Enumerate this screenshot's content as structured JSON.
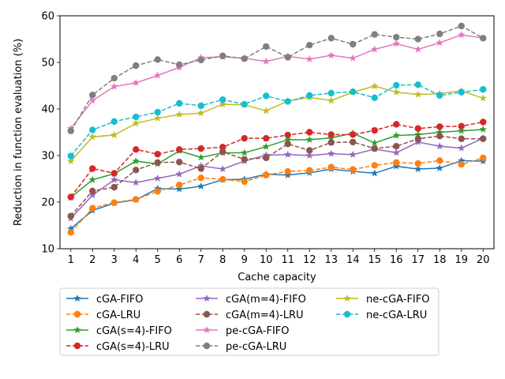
{
  "chart_data": {
    "type": "line",
    "title": "",
    "xlabel": "Cache capacity",
    "ylabel": "Reduction in function evaluation (%)",
    "x": [
      1,
      2,
      3,
      4,
      5,
      6,
      7,
      8,
      9,
      10,
      11,
      12,
      13,
      14,
      15,
      16,
      17,
      18,
      19,
      20
    ],
    "xlim": [
      0.5,
      20.5
    ],
    "ylim": [
      10,
      60
    ],
    "yticks": [
      10,
      20,
      30,
      40,
      50,
      60
    ],
    "grid": false,
    "legend_position": "lower-center",
    "series": [
      {
        "name": "cGA-FIFO",
        "color": "#1f77b4",
        "dash": "solid",
        "marker": "star",
        "values": [
          14.3,
          18.2,
          19.8,
          20.5,
          22.9,
          22.8,
          23.4,
          24.8,
          24.9,
          26.0,
          25.8,
          26.3,
          27.1,
          26.6,
          26.2,
          27.7,
          27.1,
          27.3,
          28.9,
          28.8
        ]
      },
      {
        "name": "cGA-LRU",
        "color": "#ff7f0e",
        "dash": "dashed",
        "marker": "circle",
        "values": [
          13.5,
          18.7,
          19.9,
          20.6,
          22.3,
          23.7,
          25.2,
          24.9,
          24.4,
          25.8,
          26.6,
          26.8,
          27.5,
          27.0,
          27.9,
          28.5,
          28.3,
          28.9,
          28.1,
          29.5
        ]
      },
      {
        "name": "cGA(s=4)-FIFO",
        "color": "#2ca02c",
        "dash": "solid",
        "marker": "star",
        "values": [
          21.0,
          24.8,
          26.1,
          28.8,
          28.2,
          31.0,
          29.6,
          30.6,
          30.6,
          31.9,
          33.4,
          33.4,
          33.8,
          34.8,
          32.7,
          34.3,
          34.5,
          35.0,
          35.3,
          35.6
        ]
      },
      {
        "name": "cGA(s=4)-LRU",
        "color": "#d62728",
        "dash": "dashed",
        "marker": "circle",
        "values": [
          21.1,
          27.2,
          26.2,
          31.3,
          30.3,
          31.3,
          31.5,
          31.8,
          33.7,
          33.7,
          34.4,
          35.0,
          34.5,
          34.5,
          35.4,
          36.7,
          35.8,
          36.2,
          36.3,
          37.2
        ]
      },
      {
        "name": "cGA(m=4)-FIFO",
        "color": "#9467bd",
        "dash": "solid",
        "marker": "star",
        "values": [
          16.5,
          21.5,
          24.8,
          24.2,
          25.1,
          26.0,
          27.8,
          27.1,
          28.8,
          30.1,
          30.2,
          30.0,
          30.4,
          30.2,
          31.4,
          30.6,
          32.9,
          32.0,
          31.6,
          33.7
        ]
      },
      {
        "name": "cGA(m=4)-LRU",
        "color": "#8c564b",
        "dash": "dashed",
        "marker": "circle",
        "values": [
          17.0,
          22.4,
          23.2,
          26.9,
          28.5,
          28.6,
          27.2,
          30.8,
          29.2,
          29.5,
          32.5,
          31.1,
          32.8,
          32.9,
          31.5,
          32.0,
          33.6,
          34.2,
          33.6,
          33.6
        ]
      },
      {
        "name": "pe-cGA-FIFO",
        "color": "#e377c2",
        "dash": "solid",
        "marker": "star",
        "values": [
          35.8,
          41.8,
          44.8,
          45.6,
          47.2,
          48.9,
          51.0,
          51.2,
          50.9,
          50.2,
          51.3,
          50.7,
          51.5,
          50.9,
          52.8,
          54.0,
          52.8,
          54.2,
          55.9,
          55.2
        ]
      },
      {
        "name": "pe-cGA-LRU",
        "color": "#7f7f7f",
        "dash": "dashed",
        "marker": "circle",
        "values": [
          35.3,
          43.0,
          46.6,
          49.3,
          50.6,
          49.5,
          50.5,
          51.4,
          50.8,
          53.4,
          51.1,
          53.7,
          55.2,
          53.9,
          56.0,
          55.4,
          55.0,
          56.1,
          57.8,
          55.2
        ]
      },
      {
        "name": "ne-cGA-FIFO",
        "color": "#bcbd22",
        "dash": "solid",
        "marker": "star",
        "values": [
          28.8,
          34.0,
          34.4,
          36.9,
          38.0,
          38.8,
          39.1,
          41.0,
          40.9,
          39.6,
          41.7,
          42.5,
          41.8,
          43.6,
          44.9,
          43.6,
          43.1,
          43.3,
          43.9,
          42.3
        ]
      },
      {
        "name": "ne-cGA-LRU",
        "color": "#17becf",
        "dash": "dashed",
        "marker": "circle",
        "values": [
          29.9,
          35.5,
          37.3,
          38.3,
          39.3,
          41.2,
          40.7,
          42.0,
          41.0,
          42.8,
          41.6,
          42.9,
          43.4,
          43.7,
          42.4,
          45.1,
          45.2,
          42.9,
          43.6,
          44.2
        ]
      }
    ]
  }
}
